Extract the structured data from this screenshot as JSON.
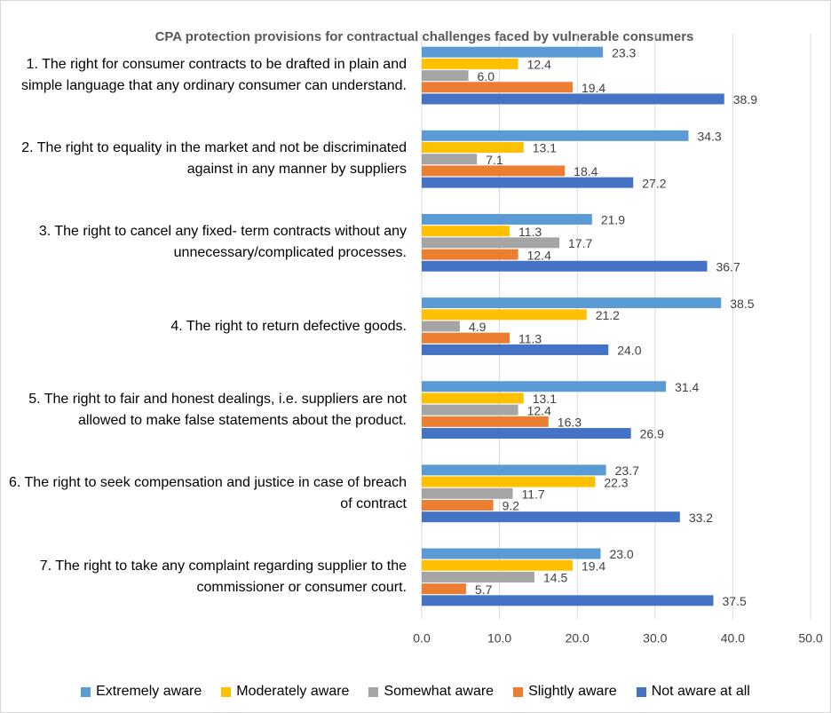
{
  "chart_data": {
    "type": "bar",
    "orientation": "horizontal",
    "title": "CPA protection provisions for contractual challenges faced by vulnerable consumers",
    "categories": [
      "1. The right for consumer contracts to be drafted in plain and simple language that any ordinary consumer can understand.",
      "2. The right to equality in the market and not be discriminated against in any manner by suppliers",
      "3. The right to cancel any fixed- term contracts without any unnecessary/complicated processes.",
      "4. The right to return defective goods.",
      "5. The right to fair and honest dealings, i.e. suppliers are not allowed to make false statements about the product.",
      "6. The right to seek compensation and justice in case of breach of contract",
      "7. The right to take any complaint regarding supplier to the commissioner or consumer court."
    ],
    "series": [
      {
        "name": "Extremely aware",
        "color": "#5b9bd5",
        "values": [
          23.3,
          34.3,
          21.9,
          38.5,
          31.4,
          23.7,
          23.0
        ],
        "value_labels": [
          "23.3",
          "34.3",
          "21.9",
          "38.5",
          "31.4",
          "23.7",
          "23.0"
        ]
      },
      {
        "name": "Moderately aware",
        "color": "#ffc000",
        "values": [
          12.4,
          13.1,
          11.3,
          21.2,
          13.1,
          22.3,
          19.4
        ],
        "value_labels": [
          "12.4",
          "13.1",
          "11.3",
          "21.2",
          "13.1",
          "22.3",
          "19.4"
        ]
      },
      {
        "name": "Somewhat aware",
        "color": "#a5a5a5",
        "values": [
          6.0,
          7.1,
          17.7,
          4.9,
          12.4,
          11.7,
          14.5
        ],
        "value_labels": [
          "6.0",
          "7.1",
          "17.7",
          "4.9",
          "12.4",
          "11.7",
          "14.5"
        ]
      },
      {
        "name": "Slightly aware",
        "color": "#ed7d31",
        "values": [
          19.4,
          18.4,
          12.4,
          11.3,
          16.3,
          9.2,
          5.7
        ],
        "value_labels": [
          "19.4",
          "18.4",
          "12.4",
          "11.3",
          "16.3",
          "9.2",
          "5.7"
        ]
      },
      {
        "name": "Not aware at all",
        "color": "#4472c4",
        "values": [
          38.9,
          27.2,
          36.7,
          24.0,
          26.9,
          33.2,
          37.5
        ],
        "value_labels": [
          "38.9",
          "27.2",
          "36.7",
          "24.0",
          "26.9",
          "33.2",
          "37.5"
        ]
      }
    ],
    "xlim": [
      0,
      50
    ],
    "xticks": [
      {
        "value": 0,
        "label": "0.0"
      },
      {
        "value": 10,
        "label": "10.0"
      },
      {
        "value": 20,
        "label": "20.0"
      },
      {
        "value": 30,
        "label": "30.0"
      },
      {
        "value": 40,
        "label": "40.0"
      },
      {
        "value": 50,
        "label": "50.0"
      }
    ],
    "grid": true,
    "legend": "bottom"
  }
}
